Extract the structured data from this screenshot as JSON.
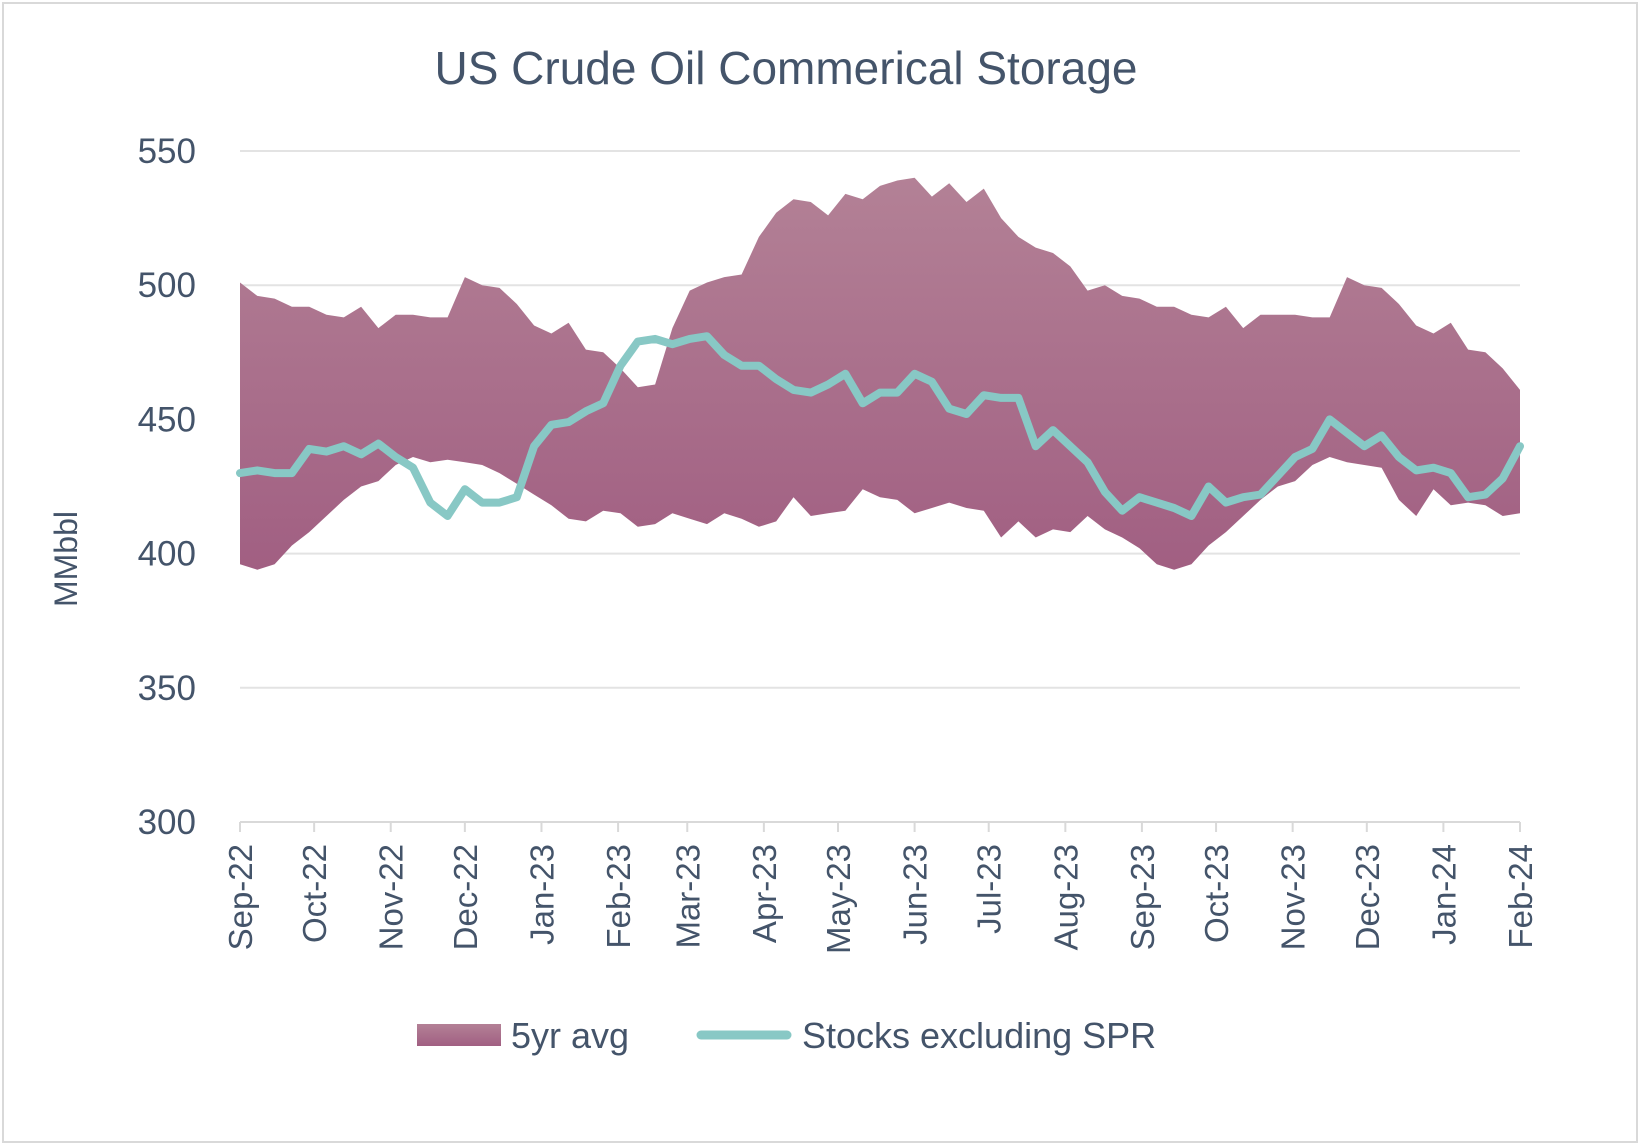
{
  "chart_data": {
    "type": "area",
    "title": "US Crude Oil Commerical Storage",
    "xlabel": "",
    "ylabel": "MMbbl",
    "ylim": [
      300,
      550
    ],
    "yticks": [
      300,
      350,
      400,
      450,
      500,
      550
    ],
    "x_ticks": [
      "Sep-22",
      "Oct-22",
      "Nov-22",
      "Dec-22",
      "Jan-23",
      "Feb-23",
      "Mar-23",
      "Apr-23",
      "May-23",
      "Jun-23",
      "Jul-23",
      "Aug-23",
      "Sep-23",
      "Oct-23",
      "Nov-23",
      "Dec-23",
      "Jan-24",
      "Feb-24"
    ],
    "grid": true,
    "legend_position": "bottom",
    "colors": {
      "band": "#a15f82",
      "band_top": "#b38196",
      "line": "#88c8c5",
      "text": "#44546a"
    },
    "series": [
      {
        "name": "5yr avg",
        "type": "range-area",
        "x": [
          "2022-09-01",
          "2022-09-08",
          "2022-09-15",
          "2022-09-22",
          "2022-09-29",
          "2022-10-06",
          "2022-10-13",
          "2022-10-20",
          "2022-10-27",
          "2022-11-03",
          "2022-11-10",
          "2022-11-17",
          "2022-11-24",
          "2022-12-01",
          "2022-12-08",
          "2022-12-15",
          "2022-12-22",
          "2022-12-29",
          "2023-01-05",
          "2023-01-12",
          "2023-01-19",
          "2023-01-26",
          "2023-02-02",
          "2023-02-09",
          "2023-02-16",
          "2023-02-23",
          "2023-03-02",
          "2023-03-09",
          "2023-03-16",
          "2023-03-23",
          "2023-03-30",
          "2023-04-06",
          "2023-04-13",
          "2023-04-20",
          "2023-04-27",
          "2023-05-04",
          "2023-05-11",
          "2023-05-18",
          "2023-05-25",
          "2023-06-01",
          "2023-06-08",
          "2023-06-15",
          "2023-06-22",
          "2023-06-29",
          "2023-07-06",
          "2023-07-13",
          "2023-07-20",
          "2023-07-27",
          "2023-08-03",
          "2023-08-10",
          "2023-08-17",
          "2023-08-24",
          "2023-08-31",
          "2023-09-07",
          "2023-09-14",
          "2023-09-21",
          "2023-09-28",
          "2023-10-05",
          "2023-10-12",
          "2023-10-19",
          "2023-10-26",
          "2023-11-02",
          "2023-11-09",
          "2023-11-16",
          "2023-11-23",
          "2023-11-30",
          "2023-12-07",
          "2023-12-14",
          "2023-12-21",
          "2023-12-28",
          "2024-01-04",
          "2024-01-11",
          "2024-01-18",
          "2024-01-25",
          "2024-02-01"
        ],
        "high": [
          501,
          496,
          495,
          492,
          492,
          489,
          488,
          492,
          484,
          489,
          489,
          488,
          488,
          503,
          500,
          499,
          493,
          485,
          482,
          486,
          476,
          475,
          469,
          462,
          463,
          484,
          498,
          501,
          503,
          504,
          518,
          527,
          532,
          531,
          526,
          534,
          532,
          537,
          539,
          540,
          533,
          538,
          531,
          536,
          525,
          518,
          514,
          512,
          507,
          498,
          500,
          496,
          495,
          492,
          492,
          489,
          488,
          492,
          484,
          489,
          489,
          489,
          488,
          488,
          503,
          500,
          499,
          493,
          485,
          482,
          486,
          476,
          475,
          469,
          461
        ],
        "low": [
          396,
          394,
          396,
          403,
          408,
          414,
          420,
          425,
          427,
          433,
          436,
          434,
          435,
          434,
          433,
          430,
          426,
          422,
          418,
          413,
          412,
          416,
          415,
          410,
          411,
          415,
          413,
          411,
          415,
          413,
          410,
          412,
          421,
          414,
          415,
          416,
          424,
          421,
          420,
          415,
          417,
          419,
          417,
          416,
          406,
          412,
          406,
          409,
          408,
          414,
          409,
          406,
          402,
          396,
          394,
          396,
          403,
          408,
          414,
          420,
          425,
          427,
          433,
          436,
          434,
          433,
          432,
          420,
          414,
          424,
          418,
          419,
          418,
          414,
          415
        ]
      },
      {
        "name": "Stocks excluding SPR",
        "type": "line",
        "x": [
          "2022-09-01",
          "2022-09-08",
          "2022-09-15",
          "2022-09-22",
          "2022-09-29",
          "2022-10-06",
          "2022-10-13",
          "2022-10-20",
          "2022-10-27",
          "2022-11-03",
          "2022-11-10",
          "2022-11-17",
          "2022-11-24",
          "2022-12-01",
          "2022-12-08",
          "2022-12-15",
          "2022-12-22",
          "2022-12-29",
          "2023-01-05",
          "2023-01-12",
          "2023-01-19",
          "2023-01-26",
          "2023-02-02",
          "2023-02-09",
          "2023-02-16",
          "2023-02-23",
          "2023-03-02",
          "2023-03-09",
          "2023-03-16",
          "2023-03-23",
          "2023-03-30",
          "2023-04-06",
          "2023-04-13",
          "2023-04-20",
          "2023-04-27",
          "2023-05-04",
          "2023-05-11",
          "2023-05-18",
          "2023-05-25",
          "2023-06-01",
          "2023-06-08",
          "2023-06-15",
          "2023-06-22",
          "2023-06-29",
          "2023-07-06",
          "2023-07-13",
          "2023-07-20",
          "2023-07-27",
          "2023-08-03",
          "2023-08-10",
          "2023-08-17",
          "2023-08-24",
          "2023-08-31",
          "2023-09-07",
          "2023-09-14",
          "2023-09-21",
          "2023-09-28",
          "2023-10-05",
          "2023-10-12",
          "2023-10-19",
          "2023-10-26",
          "2023-11-02",
          "2023-11-09",
          "2023-11-16",
          "2023-11-23",
          "2023-11-30",
          "2023-12-07",
          "2023-12-14",
          "2023-12-21",
          "2023-12-28",
          "2024-01-04",
          "2024-01-11",
          "2024-01-18",
          "2024-01-25",
          "2024-02-01"
        ],
        "values": [
          430,
          431,
          430,
          430,
          439,
          438,
          440,
          437,
          441,
          436,
          432,
          419,
          414,
          424,
          419,
          419,
          421,
          440,
          448,
          449,
          453,
          456,
          470,
          479,
          480,
          478,
          480,
          481,
          474,
          470,
          470,
          465,
          461,
          460,
          463,
          467,
          456,
          460,
          460,
          467,
          464,
          454,
          452,
          459,
          458,
          458,
          440,
          446,
          440,
          434,
          423,
          416,
          421,
          419,
          417,
          414,
          425,
          419,
          421,
          422,
          429,
          436,
          439,
          450,
          445,
          440,
          444,
          436,
          431,
          432,
          430,
          421,
          422,
          428,
          440
        ]
      }
    ]
  }
}
